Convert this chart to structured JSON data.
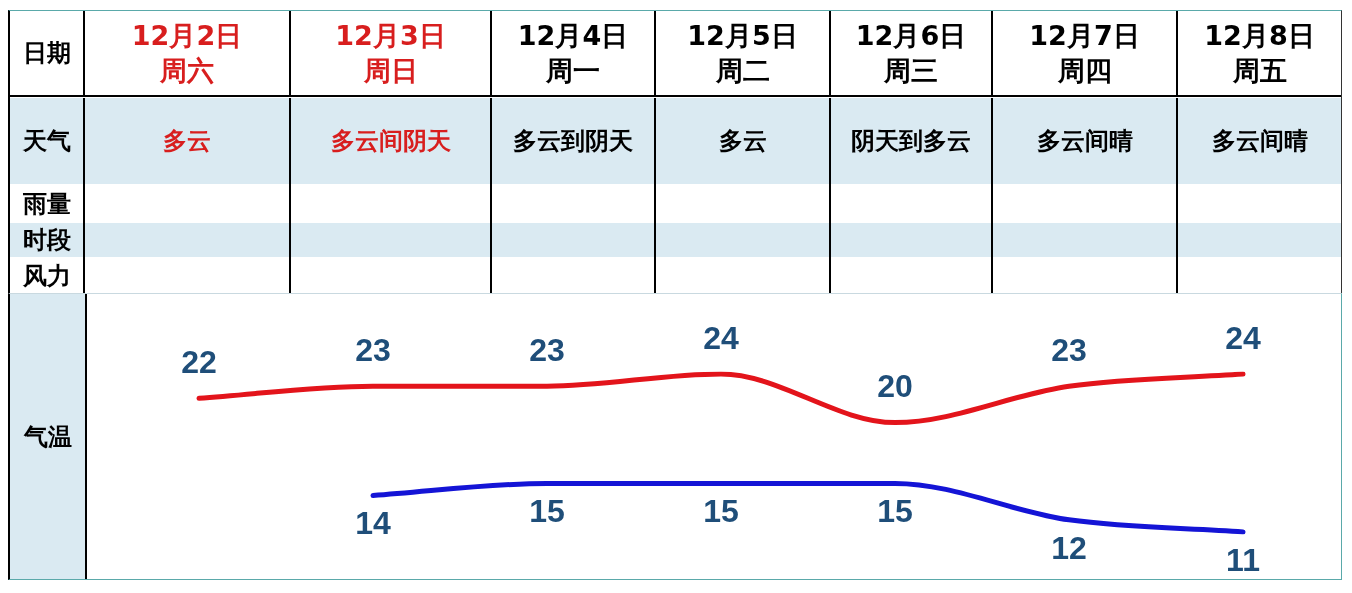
{
  "chart_data": [
    {
      "type": "other",
      "xlabel": "日期",
      "categories": [
        "12月2日周六",
        "12月3日周日",
        "12月4日周一",
        "12月5日周二",
        "12月6日周三",
        "12月7日周四",
        "12月8日周五"
      ],
      "colors": [
        "#d81e1e",
        "#d81e1e",
        "#000000",
        "#000000",
        "#000000",
        "#000000",
        "#000000"
      ],
      "y_categories": [
        "天气",
        "雨量",
        "时段",
        "风力"
      ],
      "cell_labels": [
        [
          "多云",
          "多云间阴天",
          "多云到阴天",
          "多云",
          "阴天到多云",
          "多云间晴",
          "多云间晴"
        ],
        [
          null,
          null,
          null,
          null,
          null,
          null,
          null
        ],
        [
          null,
          null,
          null,
          null,
          null,
          null,
          null
        ],
        [
          null,
          null,
          null,
          null,
          null,
          null,
          null
        ]
      ]
    },
    {
      "type": "line",
      "ylabel": "气温",
      "categories": [
        null,
        null,
        null,
        null,
        null,
        null,
        null
      ],
      "tick_labels": false,
      "data_labels": true,
      "series": [
        {
          "color": "#e3141b",
          "values": [
            22,
            23,
            23,
            24,
            20,
            23,
            24
          ]
        },
        {
          "color": "#1414d6",
          "values": [
            null,
            14,
            15,
            15,
            15,
            12,
            11
          ]
        }
      ]
    }
  ]
}
